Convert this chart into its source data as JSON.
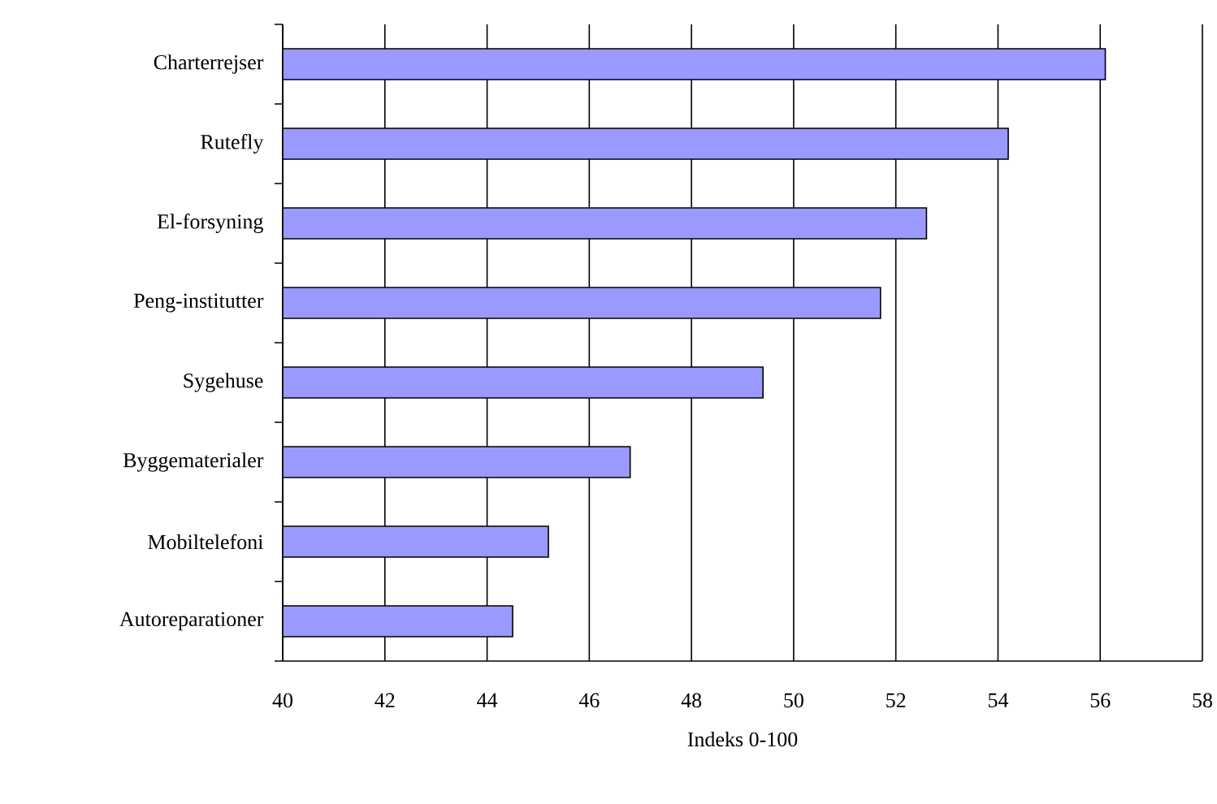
{
  "chart_data": {
    "type": "bar",
    "orientation": "horizontal",
    "xlabel": "Indeks 0-100",
    "categories": [
      "Charterrejser",
      "Rutefly",
      "El-forsyning",
      "Peng-institutter",
      "Sygehuse",
      "Byggematerialer",
      "Mobiltelefoni",
      "Autoreparationer"
    ],
    "values": [
      56.1,
      54.2,
      52.6,
      51.7,
      49.4,
      46.8,
      45.2,
      44.5
    ],
    "color": "#9999ff",
    "xlim": [
      40,
      58
    ],
    "xticks": [
      40,
      42,
      44,
      46,
      48,
      50,
      52,
      54,
      56,
      58
    ],
    "grid": "x"
  }
}
